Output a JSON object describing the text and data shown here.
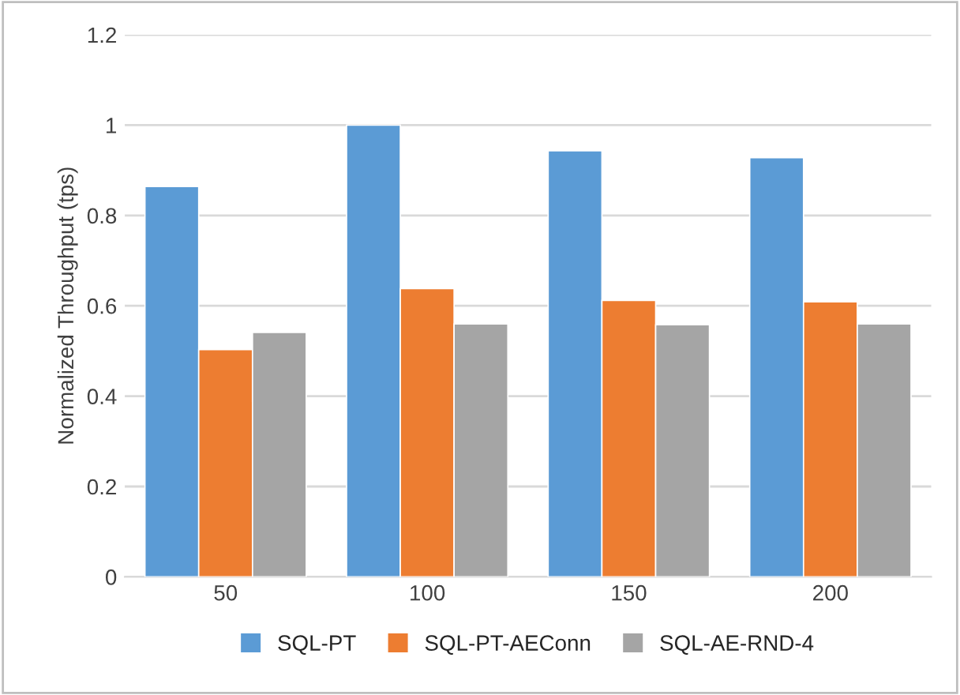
{
  "chart_data": {
    "type": "bar",
    "ylabel": "Normalized Throughput (tps)",
    "categories": [
      "50",
      "100",
      "150",
      "200"
    ],
    "series": [
      {
        "name": "SQL-PT",
        "color": "#5b9bd5",
        "values": [
          0.864,
          1.0,
          0.943,
          0.928
        ]
      },
      {
        "name": "SQL-PT-AEConn",
        "color": "#ed7d31",
        "values": [
          0.503,
          0.638,
          0.612,
          0.609
        ]
      },
      {
        "name": "SQL-AE-RND-4",
        "color": "#a5a5a5",
        "values": [
          0.541,
          0.56,
          0.558,
          0.56
        ]
      }
    ],
    "ylim": [
      0,
      1.2
    ],
    "yticks": [
      0,
      0.2,
      0.4,
      0.6,
      0.8,
      1,
      1.2
    ],
    "grid": "y",
    "legend": "bottom"
  }
}
